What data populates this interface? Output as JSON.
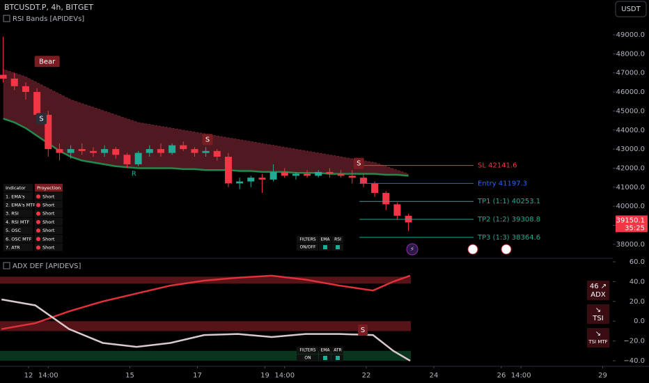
{
  "chart_data": [
    {
      "type": "candlestick",
      "title": "BTCUSDT.P, 4h, BITGET",
      "subtitle": "RSI Bands [APIDEVs]",
      "currency": "USDT",
      "x": [
        11.25,
        11.583,
        11.917,
        12.25,
        12.583,
        12.917,
        13.25,
        13.583,
        13.917,
        14.25,
        14.583,
        14.917,
        15.25,
        15.583,
        15.917,
        16.25,
        16.583,
        16.917,
        17.25,
        17.583,
        17.917,
        18.25,
        18.583,
        18.917,
        19.25,
        19.583,
        19.917,
        20.25,
        20.583,
        20.917,
        21.25,
        21.583,
        21.917,
        22.25,
        22.583,
        22.917,
        23.25
      ],
      "open": [
        46900,
        46700,
        46300,
        46000,
        44800,
        43000,
        42800,
        43000,
        42900,
        42800,
        43000,
        42700,
        42200,
        42800,
        43000,
        42800,
        43200,
        43000,
        42800,
        42900,
        42600,
        41200,
        41300,
        41500,
        41400,
        41800,
        41600,
        41700,
        41600,
        41800,
        41700,
        41600,
        41500,
        41200,
        40700,
        40100,
        39500
      ],
      "high": [
        48900,
        47000,
        46500,
        46200,
        45000,
        43300,
        43200,
        43300,
        43100,
        43200,
        43100,
        42800,
        42900,
        43200,
        43300,
        43300,
        43400,
        43100,
        43100,
        43000,
        42800,
        41500,
        41600,
        41700,
        42200,
        42000,
        41800,
        41900,
        41900,
        42000,
        41900,
        41900,
        41700,
        41300,
        40800,
        40200,
        39600
      ],
      "low": [
        46500,
        46100,
        45600,
        44500,
        42600,
        42400,
        42500,
        42700,
        42600,
        42600,
        42500,
        42000,
        42100,
        42600,
        42600,
        42700,
        42900,
        42600,
        42600,
        42400,
        41000,
        40900,
        41000,
        40700,
        41300,
        41500,
        41400,
        41500,
        41500,
        41500,
        41500,
        41200,
        41000,
        40500,
        39800,
        39300,
        38700
      ],
      "close": [
        46700,
        46300,
        46000,
        44800,
        43000,
        42800,
        43000,
        42900,
        42800,
        43000,
        42700,
        42200,
        42800,
        43000,
        42800,
        43200,
        43000,
        42800,
        42900,
        42600,
        41200,
        41300,
        41500,
        41400,
        41800,
        41600,
        41700,
        41600,
        41800,
        41700,
        41600,
        41500,
        41200,
        40700,
        40100,
        39500,
        39150
      ],
      "band_upper": [
        47200,
        47000,
        46800,
        46500,
        46200,
        45900,
        45600,
        45400,
        45200,
        45000,
        44800,
        44600,
        44400,
        44300,
        44200,
        44100,
        44000,
        43900,
        43800,
        43700,
        43600,
        43500,
        43400,
        43300,
        43200,
        43100,
        43000,
        42900,
        42800,
        42700,
        42600,
        42500,
        42400,
        42300,
        42100,
        41900,
        41700
      ],
      "band_lower": [
        44600,
        44400,
        44100,
        43700,
        43300,
        42900,
        42600,
        42400,
        42300,
        42200,
        42100,
        42050,
        42000,
        42000,
        42000,
        42000,
        41950,
        41950,
        41900,
        41900,
        41900,
        41850,
        41850,
        41800,
        41800,
        41800,
        41750,
        41750,
        41750,
        41700,
        41700,
        41700,
        41700,
        41700,
        41650,
        41650,
        41600
      ],
      "up_color": "#22ab94",
      "down_color": "#f23645",
      "band_color": "#b2374a",
      "basis_color": "#1f8a4c",
      "xlim": [
        11.155,
        29.3
      ],
      "xticks": [
        12,
        {
          "value": 12.583,
          "label": "14:00"
        },
        15,
        17,
        19,
        {
          "value": 19.583,
          "label": "14:00"
        },
        22,
        24,
        26,
        {
          "value": 26.583,
          "label": "14:00"
        },
        29
      ],
      "ylim": [
        37300,
        50170
      ],
      "yticks": [
        {
          "value": 38000,
          "label": "38000.0"
        },
        {
          "value": 39000,
          "label": "39000.0"
        },
        {
          "value": 40000,
          "label": "40000.0"
        },
        {
          "value": 41000,
          "label": "41000.0"
        },
        {
          "value": 42000,
          "label": "42000.0"
        },
        {
          "value": 43000,
          "label": "43000.0"
        },
        {
          "value": 44000,
          "label": "44000.0"
        },
        {
          "value": 45000,
          "label": "45000.0"
        },
        {
          "value": 46000,
          "label": "46000.0"
        },
        {
          "value": 47000,
          "label": "47000.0"
        },
        {
          "value": 48000,
          "label": "48000.0"
        },
        {
          "value": 49000,
          "label": "49000.0"
        }
      ],
      "levels": [
        {
          "label": "SL 42141.6",
          "value": 42141.6,
          "color": "#f23645"
        },
        {
          "label": "Entry 41197.3",
          "value": 41197.3,
          "color": "#2962ff"
        },
        {
          "label": "TP1 (1:1) 40253.1",
          "value": 40253.1,
          "color": "#22ab94"
        },
        {
          "label": "TP2 (1:2) 39308.8",
          "value": 39308.8,
          "color": "#22ab94"
        },
        {
          "label": "TP3 (1:3) 38364.6",
          "value": 38364.6,
          "color": "#22ab94"
        }
      ],
      "last_price": 39150.1,
      "countdown": "35:25",
      "markers": [
        {
          "label": "Bear",
          "x": 12.55,
          "y": 47600,
          "color": "#7a1d22"
        },
        {
          "label": "S",
          "x": 12.38,
          "y": 44600,
          "color": "#2a2e39"
        },
        {
          "label": "S",
          "x": 17.3,
          "y": 43500,
          "color": "#7a1d22"
        },
        {
          "label": "S",
          "x": 21.78,
          "y": 42250,
          "color": "#7a1d22"
        },
        {
          "label": "R",
          "x": 15.12,
          "y": 41700,
          "color": "none"
        }
      ],
      "table": {
        "header": [
          "Indicator",
          "Proyection"
        ],
        "rows": [
          [
            "1. EMA's",
            "Short"
          ],
          [
            "2. EMA's MTF",
            "Short"
          ],
          [
            "3. RSI",
            "Short"
          ],
          [
            "4. RSI MTF",
            "Short"
          ],
          [
            "5. OSC",
            "Short"
          ],
          [
            "6. OSC MTF",
            "Short"
          ],
          [
            "7. ATR",
            "Short"
          ]
        ]
      },
      "filters": {
        "header": [
          "FILTERS",
          "EMA",
          "RSI"
        ],
        "row": "ON/OFF"
      }
    },
    {
      "type": "line",
      "title": "ADX DEF [APIDEVS]",
      "x": [
        11.2,
        12.2,
        13.2,
        14.2,
        15.2,
        16.2,
        17.2,
        18.2,
        19.2,
        20.2,
        21.2,
        22.2,
        22.8,
        23.3
      ],
      "series": [
        {
          "color": "#e0313b",
          "values": [
            -8,
            -2,
            10,
            20,
            28,
            36,
            41,
            44,
            46,
            42,
            36,
            31,
            40,
            46
          ]
        },
        {
          "color": "#d9c8cc",
          "values": [
            22,
            16,
            -8,
            -22,
            -26,
            -22,
            -14,
            -13,
            -16,
            -13,
            -13,
            -14,
            -30,
            -40
          ]
        }
      ],
      "ylim": [
        -44.9,
        62.8
      ],
      "yticks": [
        {
          "value": 60,
          "label": "60.0"
        },
        {
          "value": 40,
          "label": "40.0"
        },
        {
          "value": 20,
          "label": "20.0"
        },
        {
          "value": 0,
          "label": "0.0"
        },
        {
          "value": -20,
          "label": "−20.0"
        },
        {
          "value": -40,
          "label": "−40.0"
        }
      ],
      "badges": [
        {
          "top": "46 ↗",
          "bottom": "ADX"
        },
        {
          "top": "↘",
          "bottom": "TSI"
        },
        {
          "top": "↘",
          "bottom": "TSI MTF"
        }
      ],
      "marker": {
        "label": "S",
        "x": 21.9,
        "y": -9
      },
      "filters": {
        "header": [
          "FILTERS",
          "EMA",
          "ATR"
        ],
        "row": "ON"
      }
    }
  ]
}
